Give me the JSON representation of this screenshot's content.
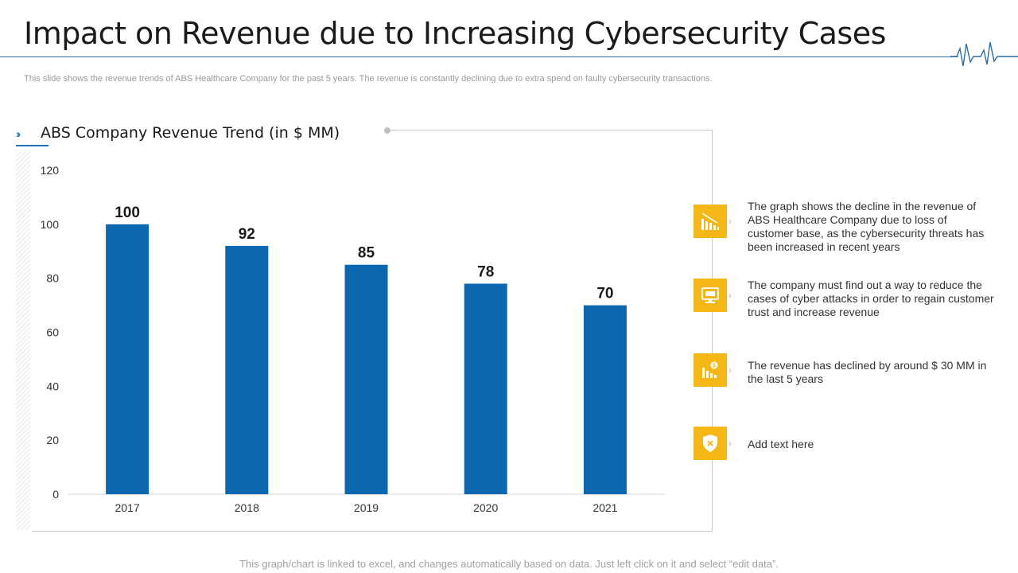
{
  "slide": {
    "title": "Impact on Revenue due to Increasing Cybersecurity Cases",
    "subtitle": "This slide shows the revenue trends of ABS Healthcare Company for the past 5 years. The revenue is constantly declining due to extra spend on faulty cybersecurity transactions.",
    "footer": "This graph/chart is linked to excel,  and changes automatically based on data. Just left click on it and select “edit data”."
  },
  "chart_data": {
    "type": "bar",
    "title": "ABS Company Revenue Trend (in $ MM)",
    "categories": [
      "2017",
      "2018",
      "2019",
      "2020",
      "2021"
    ],
    "values": [
      100,
      92,
      85,
      78,
      70
    ],
    "xlabel": "",
    "ylabel": "",
    "ylim": [
      0,
      120
    ],
    "yticks": [
      0,
      20,
      40,
      60,
      80,
      100,
      120
    ],
    "bar_color": "#0a67b0",
    "data_labels": true,
    "grid": false
  },
  "notes": [
    {
      "icon": "bar-chart-decline-icon",
      "text": "The graph shows the decline in the revenue of ABS Healthcare Company due to loss of customer base, as the cybersecurity threats has been increased in recent years"
    },
    {
      "icon": "monitor-security-icon",
      "text": "The company must find out a way to reduce the cases of cyber attacks in order to regain customer trust and increase revenue"
    },
    {
      "icon": "revenue-decline-icon",
      "text": "The revenue has declined by around $ 30 MM in the last 5 years"
    },
    {
      "icon": "shield-alert-icon",
      "text": "Add text here"
    }
  ],
  "colors": {
    "accent_blue": "#0a67b0",
    "icon_yellow": "#f4b715"
  }
}
